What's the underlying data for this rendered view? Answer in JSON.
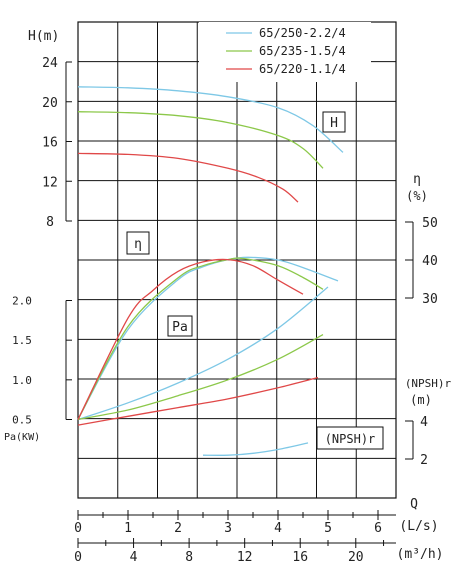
{
  "chart_data": {
    "type": "line",
    "labels": {
      "head_axis": "H(m)",
      "eff_axis": "η",
      "eff_unit": "(%)",
      "pa_axis": "Pa(KW)",
      "npsh_axis": "(NPSH)r",
      "npsh_unit": "(m)",
      "q_axis": "Q",
      "q_ls_unit": "(L/s)",
      "q_m3h_unit": "(m³/h)",
      "box_H": "H",
      "box_eta": "η",
      "box_Pa": "Pa",
      "box_npsh": "(NPSH)r"
    },
    "legend": [
      "65/250-2.2/4",
      "65/235-1.5/4",
      "65/220-1.1/4"
    ],
    "colors": {
      "s1": "#7ec8e6",
      "s2": "#8cc84a",
      "s3": "#e04848",
      "grid": "#111111",
      "text": "#222222"
    },
    "axes": {
      "q_ls": {
        "min": 0,
        "max": 6,
        "ticks": [
          "0",
          "1",
          "2",
          "3",
          "4",
          "5",
          "6"
        ]
      },
      "q_m3h": {
        "min": 0,
        "max": 22,
        "ticks": [
          "0",
          "4",
          "8",
          "12",
          "16",
          "20"
        ]
      },
      "head": {
        "min": 8,
        "max": 24,
        "ticks": [
          "24",
          "20",
          "16",
          "12",
          "8"
        ]
      },
      "eff": {
        "min": 30,
        "max": 50,
        "ticks": [
          "50",
          "40",
          "30"
        ]
      },
      "pa": {
        "min": 0.5,
        "max": 2.0,
        "ticks": [
          "2.0",
          "1.5",
          "1.0",
          "0.5"
        ]
      },
      "npsh": {
        "min": 2,
        "max": 4,
        "ticks": [
          "4",
          "2"
        ]
      }
    },
    "series": [
      {
        "name": "65/250-2.2/4",
        "head": [
          [
            0,
            21.5
          ],
          [
            1,
            21.4
          ],
          [
            2,
            21.1
          ],
          [
            3,
            20.5
          ],
          [
            4,
            19.4
          ],
          [
            4.7,
            17.6
          ],
          [
            5.3,
            14.9
          ]
        ],
        "eff": [
          [
            0,
            0.5
          ],
          [
            1,
            21.7
          ],
          [
            2,
            34.8
          ],
          [
            2.5,
            38.2
          ],
          [
            3,
            40.1
          ],
          [
            3.4,
            40.7
          ],
          [
            4,
            40.0
          ],
          [
            4.5,
            38.0
          ],
          [
            5.2,
            34.5
          ]
        ],
        "pa": [
          [
            0,
            0.5
          ],
          [
            1,
            0.71
          ],
          [
            2,
            0.96
          ],
          [
            3,
            1.26
          ],
          [
            4,
            1.65
          ],
          [
            5,
            2.17
          ]
        ],
        "npsh": [
          [
            2.5,
            2.2
          ],
          [
            3,
            2.2
          ],
          [
            3.5,
            2.3
          ],
          [
            4,
            2.5
          ],
          [
            4.6,
            2.85
          ]
        ]
      },
      {
        "name": "65/235-1.5/4",
        "head": [
          [
            0,
            19.0
          ],
          [
            1,
            18.9
          ],
          [
            2,
            18.6
          ],
          [
            3,
            17.9
          ],
          [
            4,
            16.6
          ],
          [
            4.5,
            15.3
          ],
          [
            4.9,
            13.3
          ]
        ],
        "eff": [
          [
            0,
            0.5
          ],
          [
            1,
            22.5
          ],
          [
            2,
            35.3
          ],
          [
            2.5,
            38.5
          ],
          [
            3,
            40.1
          ],
          [
            3.3,
            40.4
          ],
          [
            4,
            38.5
          ],
          [
            4.5,
            35.4
          ],
          [
            4.9,
            32.3
          ]
        ],
        "pa": [
          [
            0,
            0.5
          ],
          [
            1,
            0.62
          ],
          [
            2,
            0.8
          ],
          [
            3,
            1.0
          ],
          [
            4,
            1.26
          ],
          [
            4.9,
            1.57
          ]
        ],
        "npsh": []
      },
      {
        "name": "65/220-1.1/4",
        "head": [
          [
            0,
            14.8
          ],
          [
            1,
            14.7
          ],
          [
            2,
            14.3
          ],
          [
            3,
            13.3
          ],
          [
            3.6,
            12.4
          ],
          [
            4.1,
            11.2
          ],
          [
            4.4,
            9.9
          ]
        ],
        "eff": [
          [
            0,
            0.5
          ],
          [
            1,
            24.7
          ],
          [
            1.5,
            32.0
          ],
          [
            2,
            37.0
          ],
          [
            2.5,
            39.5
          ],
          [
            3,
            40.1
          ],
          [
            3.5,
            38.5
          ],
          [
            4,
            34.7
          ],
          [
            4.5,
            31.0
          ]
        ],
        "pa": [
          [
            0,
            0.43
          ],
          [
            1,
            0.54
          ],
          [
            2,
            0.65
          ],
          [
            3,
            0.76
          ],
          [
            4,
            0.9
          ],
          [
            4.8,
            1.03
          ]
        ],
        "npsh": []
      }
    ]
  }
}
